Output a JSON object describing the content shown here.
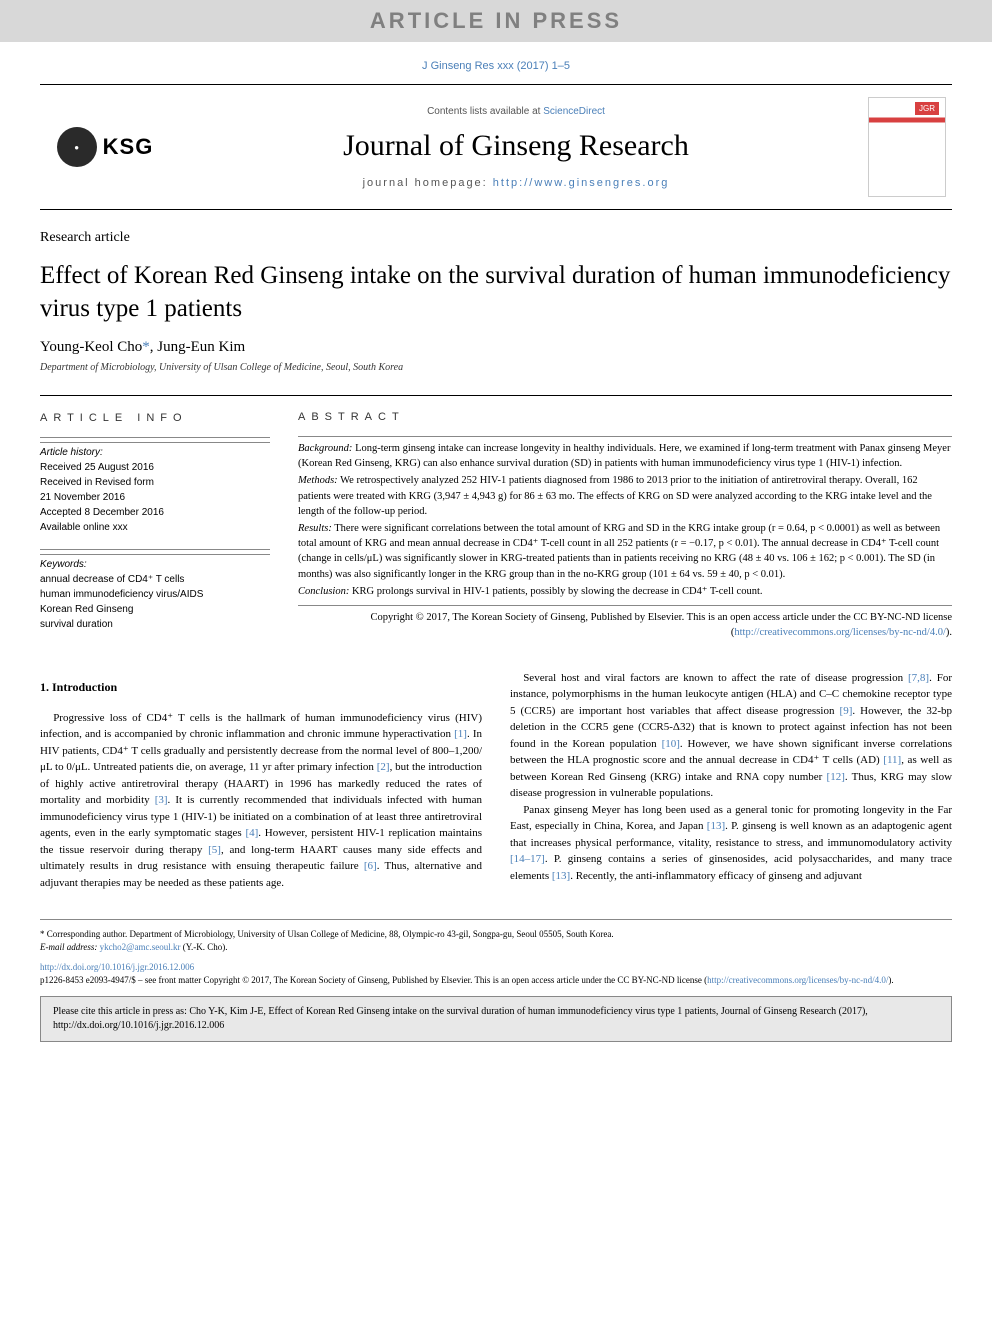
{
  "banner": "ARTICLE IN PRESS",
  "topCitation": {
    "text": "J Ginseng Res xxx (2017) 1–5",
    "href": "#"
  },
  "header": {
    "contentsPrefix": "Contents lists available at ",
    "contentsLink": "ScienceDirect",
    "journalTitle": "Journal of Ginseng Research",
    "homepagePrefix": "journal homepage: ",
    "homepageLink": "http://www.ginsengres.org",
    "logoText": "KSG"
  },
  "article": {
    "type": "Research article",
    "title": "Effect of Korean Red Ginseng intake on the survival duration of human immunodeficiency virus type 1 patients",
    "authors": "Young-Keol Cho",
    "authorSuffix": "*",
    "authors2": ", Jung-Eun Kim",
    "affiliation": "Department of Microbiology, University of Ulsan College of Medicine, Seoul, South Korea"
  },
  "info": {
    "heading": "ARTICLE INFO",
    "historyLabel": "Article history:",
    "history": [
      "Received 25 August 2016",
      "Received in Revised form",
      "21 November 2016",
      "Accepted 8 December 2016",
      "Available online xxx"
    ],
    "keywordsLabel": "Keywords:",
    "keywords": [
      "annual decrease of CD4⁺ T cells",
      "human immunodeficiency virus/AIDS",
      "Korean Red Ginseng",
      "survival duration"
    ]
  },
  "abstract": {
    "heading": "ABSTRACT",
    "sections": [
      {
        "label": "Background:",
        "text": " Long-term ginseng intake can increase longevity in healthy individuals. Here, we examined if long-term treatment with Panax ginseng Meyer (Korean Red Ginseng, KRG) can also enhance survival duration (SD) in patients with human immunodeficiency virus type 1 (HIV-1) infection."
      },
      {
        "label": "Methods:",
        "text": " We retrospectively analyzed 252 HIV-1 patients diagnosed from 1986 to 2013 prior to the initiation of antiretroviral therapy. Overall, 162 patients were treated with KRG (3,947 ± 4,943 g) for 86 ± 63 mo. The effects of KRG on SD were analyzed according to the KRG intake level and the length of the follow-up period."
      },
      {
        "label": "Results:",
        "text": " There were significant correlations between the total amount of KRG and SD in the KRG intake group (r = 0.64, p < 0.0001) as well as between total amount of KRG and mean annual decrease in CD4⁺ T-cell count in all 252 patients (r = −0.17, p < 0.01). The annual decrease in CD4⁺ T-cell count (change in cells/μL) was significantly slower in KRG-treated patients than in patients receiving no KRG (48 ± 40 vs. 106 ± 162; p < 0.001). The SD (in months) was also significantly longer in the KRG group than in the no-KRG group (101 ± 64 vs. 59 ± 40, p < 0.01)."
      },
      {
        "label": "Conclusion:",
        "text": " KRG prolongs survival in HIV-1 patients, possibly by slowing the decrease in CD4⁺ T-cell count."
      }
    ],
    "copyright": "Copyright © 2017, The Korean Society of Ginseng, Published by Elsevier. This is an open access article under the CC BY-NC-ND license (",
    "copyrightLink": "http://creativecommons.org/licenses/by-nc-nd/4.0/",
    "copyrightEnd": ")."
  },
  "introHeading": "1.  Introduction",
  "paragraphs": {
    "p1a": "Progressive loss of CD4⁺ T cells is the hallmark of human immunodeficiency virus (HIV) infection, and is accompanied by chronic inflammation and chronic immune hyperactivation ",
    "p1r1": "[1]",
    "p1b": ". In HIV patients, CD4⁺ T cells gradually and persistently decrease from the normal level of 800–1,200/μL to 0/μL. Untreated patients die, on average, 11 yr after primary infection ",
    "p1r2": "[2]",
    "p1c": ", but the introduction of highly active antiretroviral therapy (HAART) in 1996 has markedly reduced the rates of mortality and morbidity ",
    "p1r3": "[3]",
    "p1d": ". It is currently recommended that individuals infected with human immunodeficiency virus type 1 (HIV-1) be initiated on a combination of at least three antiretroviral agents, even in the early symptomatic stages ",
    "p1r4": "[4]",
    "p1e": ". However, persistent HIV-1 replication maintains the tissue reservoir during therapy ",
    "p1r5": "[5]",
    "p1f": ", and long-term HAART causes many side effects and ultimately results in drug resistance with ensuing therapeutic failure ",
    "p1r6": "[6]",
    "p1g": ". Thus, alternative and adjuvant therapies may be needed as these patients age.",
    "p2a": "Several host and viral factors are known to affect the rate of disease progression ",
    "p2r1": "[7,8]",
    "p2b": ". For instance, polymorphisms in the human leukocyte antigen (HLA) and C–C chemokine receptor type 5 (CCR5) are important host variables that affect disease progression ",
    "p2r2": "[9]",
    "p2c": ". However, the 32-bp deletion in the CCR5 gene (CCR5-Δ32) that is known to protect against infection has not been found in the Korean population ",
    "p2r3": "[10]",
    "p2d": ". However, we have shown significant inverse correlations between the HLA prognostic score and the annual decrease in CD4⁺ T cells (AD) ",
    "p2r4": "[11]",
    "p2e": ", as well as between Korean Red Ginseng (KRG) intake and RNA copy number ",
    "p2r5": "[12]",
    "p2f": ". Thus, KRG may slow disease progression in vulnerable populations.",
    "p3a": "Panax ginseng Meyer has long been used as a general tonic for promoting longevity in the Far East, especially in China, Korea, and Japan ",
    "p3r1": "[13]",
    "p3b": ". P. ginseng is well known as an adaptogenic agent that increases physical performance, vitality, resistance to stress, and immunomodulatory activity ",
    "p3r2": "[14–17]",
    "p3c": ". P. ginseng contains a series of ginsenosides, acid polysaccharides, and many trace elements ",
    "p3r3": "[13]",
    "p3d": ". Recently, the anti-inflammatory efficacy of ginseng and adjuvant"
  },
  "footer": {
    "corresponding": "* Corresponding author. Department of Microbiology, University of Ulsan College of Medicine, 88, Olympic-ro 43-gil, Songpa-gu, Seoul 05505, South Korea.",
    "emailLabel": "E-mail address: ",
    "email": "ykcho2@amc.seoul.kr",
    "emailSuffix": " (Y.-K. Cho).",
    "doi": "http://dx.doi.org/10.1016/j.jgr.2016.12.006",
    "issn": "p1226-8453 e2093-4947/$ – see front matter Copyright © 2017, The Korean Society of Ginseng, Published by Elsevier. This is an open access article under the CC BY-NC-ND license (",
    "issnLink": "http://creativecommons.org/licenses/by-nc-nd/4.0/",
    "issnEnd": ")."
  },
  "citeBox": "Please cite this article in press as: Cho Y-K, Kim J-E, Effect of Korean Red Ginseng intake on the survival duration of human immunodeficiency virus type 1 patients, Journal of Ginseng Research (2017), http://dx.doi.org/10.1016/j.jgr.2016.12.006"
}
